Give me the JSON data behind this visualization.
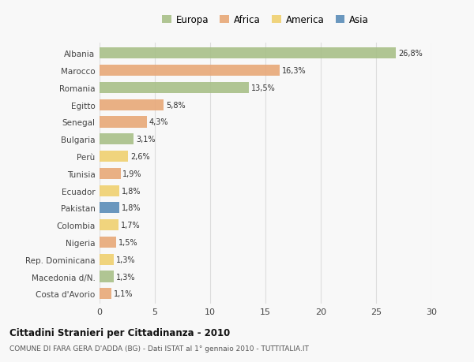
{
  "categories": [
    "Albania",
    "Marocco",
    "Romania",
    "Egitto",
    "Senegal",
    "Bulgaria",
    "Perù",
    "Tunisia",
    "Ecuador",
    "Pakistan",
    "Colombia",
    "Nigeria",
    "Rep. Dominicana",
    "Macedonia d/N.",
    "Costa d'Avorio"
  ],
  "values": [
    26.8,
    16.3,
    13.5,
    5.8,
    4.3,
    3.1,
    2.6,
    1.9,
    1.8,
    1.8,
    1.7,
    1.5,
    1.3,
    1.3,
    1.1
  ],
  "labels": [
    "26,8%",
    "16,3%",
    "13,5%",
    "5,8%",
    "4,3%",
    "3,1%",
    "2,6%",
    "1,9%",
    "1,8%",
    "1,8%",
    "1,7%",
    "1,5%",
    "1,3%",
    "1,3%",
    "1,1%"
  ],
  "colors": [
    "#a8c088",
    "#e8a878",
    "#a8c088",
    "#e8a878",
    "#e8a878",
    "#a8c088",
    "#f0d070",
    "#e8a878",
    "#f0d070",
    "#5b8db8",
    "#f0d070",
    "#e8a878",
    "#f0d070",
    "#a8c088",
    "#e8a878"
  ],
  "legend_labels": [
    "Europa",
    "Africa",
    "America",
    "Asia"
  ],
  "legend_colors": [
    "#a8c088",
    "#e8a878",
    "#f0d070",
    "#5b8db8"
  ],
  "title": "Cittadini Stranieri per Cittadinanza - 2010",
  "subtitle": "COMUNE DI FARA GERA D'ADDA (BG) - Dati ISTAT al 1° gennaio 2010 - TUTTITALIA.IT",
  "xlim": [
    0,
    30
  ],
  "xticks": [
    0,
    5,
    10,
    15,
    20,
    25,
    30
  ],
  "background_color": "#f8f8f8",
  "grid_color": "#dddddd",
  "bar_height": 0.65
}
